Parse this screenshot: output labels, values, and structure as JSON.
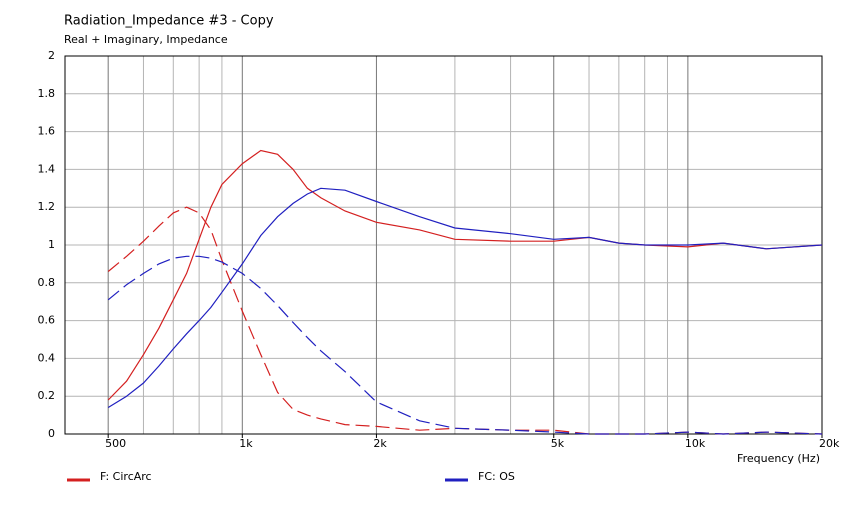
{
  "chart_data": {
    "type": "line",
    "title": "Radiation_Impedance #3 - Copy",
    "subtitle": "Real + Imaginary, Impedance",
    "x_label": "Frequency  (Hz)",
    "log_x": true,
    "grid": true,
    "legend": "bottom",
    "xlim": [
      400,
      20000
    ],
    "ylim": [
      0,
      2
    ],
    "xticks": [
      500,
      {
        "value": 1000,
        "label": "1k"
      },
      {
        "value": 2000,
        "label": "2k"
      },
      {
        "value": 5000,
        "label": "5k"
      },
      {
        "value": 10000,
        "label": "10k"
      },
      {
        "value": 20000,
        "label": "20k"
      }
    ],
    "minor_xticks": [
      600,
      700,
      800,
      900,
      3000,
      4000,
      6000,
      7000,
      8000,
      9000
    ],
    "yticks": [
      0,
      0.2,
      0.4,
      0.6,
      0.8,
      1,
      1.2,
      1.4,
      1.6,
      1.8,
      2
    ],
    "x": [
      500,
      550,
      600,
      650,
      700,
      750,
      800,
      850,
      900,
      1000,
      1100,
      1200,
      1300,
      1400,
      1500,
      1700,
      2000,
      2500,
      3000,
      4000,
      5000,
      6000,
      7000,
      8000,
      10000,
      12000,
      15000,
      20000
    ],
    "series": [
      {
        "name": "F: CircArc",
        "color": "#d42020",
        "values": [
          0.18,
          0.28,
          0.42,
          0.56,
          0.71,
          0.85,
          1.03,
          1.2,
          1.32,
          1.43,
          1.5,
          1.48,
          1.4,
          1.3,
          1.25,
          1.18,
          1.12,
          1.08,
          1.03,
          1.02,
          1.02,
          1.04,
          1.01,
          1.0,
          0.99,
          1.01,
          0.98,
          1.0
        ],
        "imaginary_values": [
          0.86,
          0.94,
          1.02,
          1.1,
          1.17,
          1.2,
          1.17,
          1.08,
          0.92,
          0.65,
          0.42,
          0.22,
          0.13,
          0.1,
          0.08,
          0.05,
          0.04,
          0.02,
          0.03,
          0.02,
          0.02,
          0,
          0,
          0,
          0.01,
          0,
          0.01,
          0
        ]
      },
      {
        "name": "FC: OS",
        "color": "#2020c0",
        "values": [
          0.14,
          0.2,
          0.27,
          0.36,
          0.45,
          0.53,
          0.6,
          0.67,
          0.75,
          0.9,
          1.05,
          1.15,
          1.22,
          1.27,
          1.3,
          1.29,
          1.23,
          1.15,
          1.09,
          1.06,
          1.03,
          1.04,
          1.01,
          1.0,
          1.0,
          1.01,
          0.98,
          1.0
        ],
        "imaginary_values": [
          0.71,
          0.79,
          0.85,
          0.9,
          0.93,
          0.94,
          0.94,
          0.93,
          0.91,
          0.85,
          0.77,
          0.68,
          0.59,
          0.51,
          0.44,
          0.33,
          0.17,
          0.07,
          0.03,
          0.02,
          0.01,
          0,
          0,
          0,
          0.01,
          0,
          0.01,
          0
        ]
      }
    ]
  }
}
